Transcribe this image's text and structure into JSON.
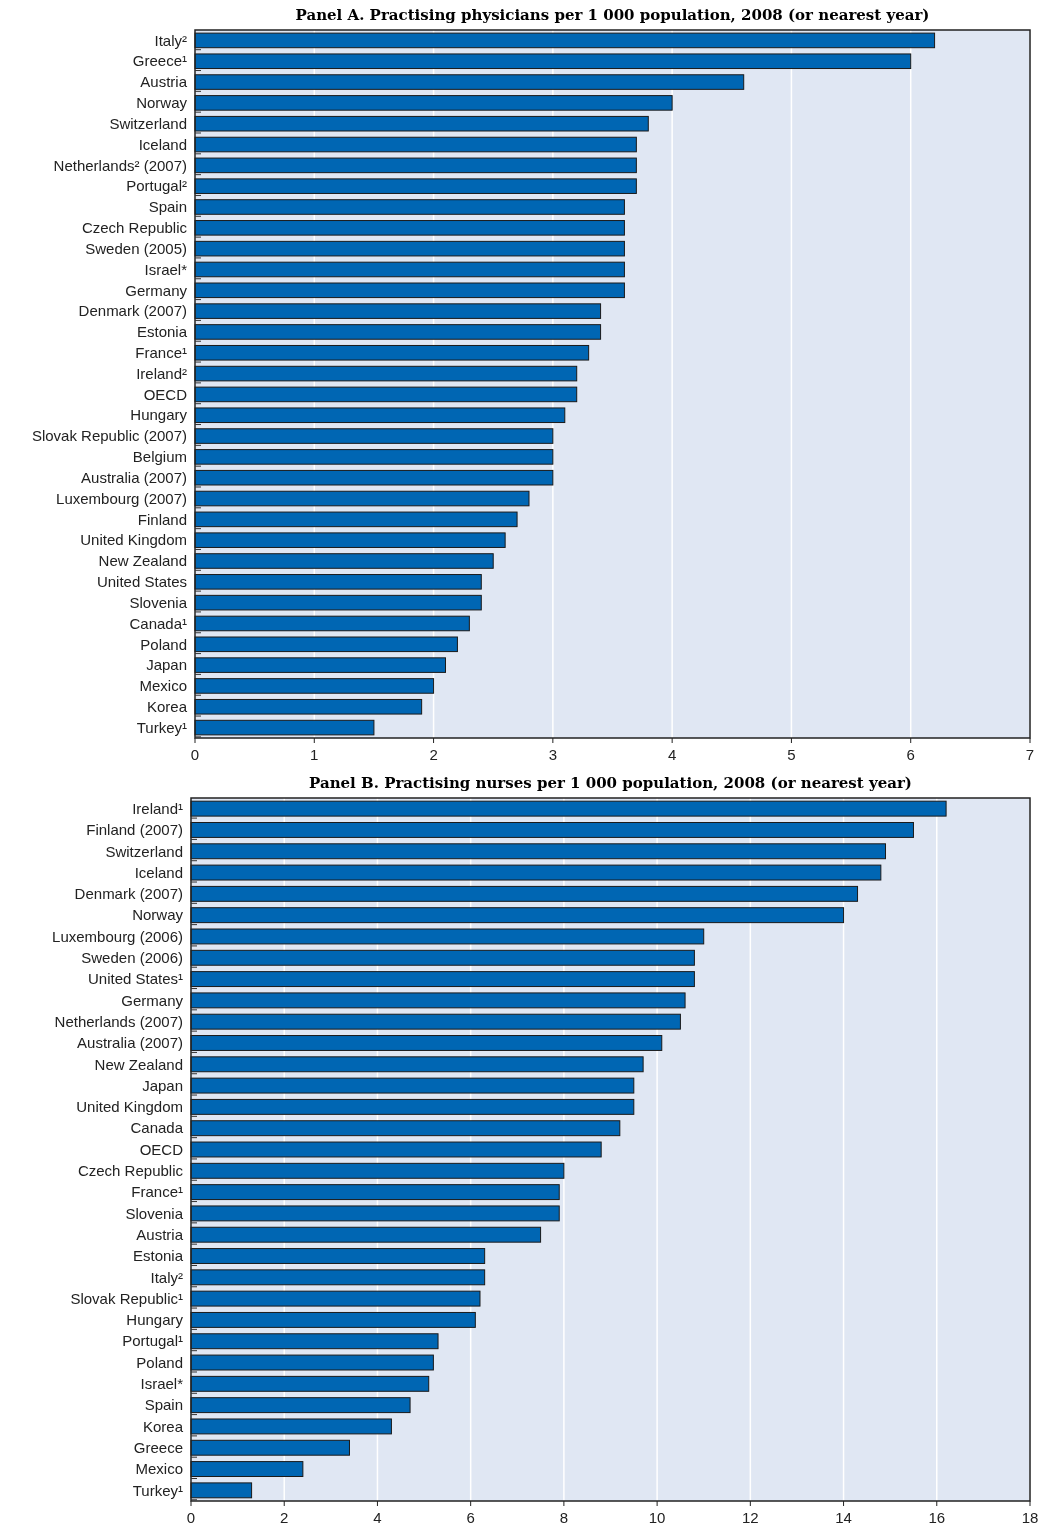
{
  "chart_data": [
    {
      "type": "bar",
      "orientation": "horizontal",
      "title": "Panel A. Practising physicians per 1 000 population, 2008 (or nearest year)",
      "categories": [
        "Italy²",
        "Greece¹",
        "Austria",
        "Norway",
        "Switzerland",
        "Iceland",
        "Netherlands² (2007)",
        "Portugal²",
        "Spain",
        "Czech Republic",
        "Sweden (2005)",
        "Israel*",
        "Germany",
        "Denmark (2007)",
        "Estonia",
        "France¹",
        "Ireland²",
        "OECD",
        "Hungary",
        "Slovak Republic (2007)",
        "Belgium",
        "Australia (2007)",
        "Luxembourg (2007)",
        "Finland",
        "United Kingdom",
        "New Zealand",
        "United States",
        "Slovenia",
        "Canada¹",
        "Poland",
        "Japan",
        "Mexico",
        "Korea",
        "Turkey¹"
      ],
      "values": [
        6.2,
        6.0,
        4.6,
        4.0,
        3.8,
        3.7,
        3.7,
        3.7,
        3.6,
        3.6,
        3.6,
        3.6,
        3.6,
        3.4,
        3.4,
        3.3,
        3.2,
        3.2,
        3.1,
        3.0,
        3.0,
        3.0,
        2.8,
        2.7,
        2.6,
        2.5,
        2.4,
        2.4,
        2.3,
        2.2,
        2.1,
        2.0,
        1.9,
        1.5
      ],
      "color": "#0066b3",
      "xlim": [
        0,
        7
      ],
      "xticks": [
        0,
        1,
        2,
        3,
        4,
        5,
        6,
        7
      ],
      "grid": "x"
    },
    {
      "type": "bar",
      "orientation": "horizontal",
      "title": "Panel B. Practising nurses per 1 000 population, 2008 (or nearest year)",
      "categories": [
        "Ireland¹",
        "Finland (2007)",
        "Switzerland",
        "Iceland",
        "Denmark (2007)",
        "Norway",
        "Luxembourg (2006)",
        "Sweden (2006)",
        "United States¹",
        "Germany",
        "Netherlands (2007)",
        "Australia (2007)",
        "New Zealand",
        "Japan",
        "United Kingdom",
        "Canada",
        "OECD",
        "Czech Republic",
        "France¹",
        "Slovenia",
        "Austria",
        "Estonia",
        "Italy²",
        "Slovak Republic¹",
        "Hungary",
        "Portugal¹",
        "Poland",
        "Israel*",
        "Spain",
        "Korea",
        "Greece",
        "Mexico",
        "Turkey¹"
      ],
      "values": [
        16.2,
        15.5,
        14.9,
        14.8,
        14.3,
        14.0,
        11.0,
        10.8,
        10.8,
        10.6,
        10.5,
        10.1,
        9.7,
        9.5,
        9.5,
        9.2,
        8.8,
        8.0,
        7.9,
        7.9,
        7.5,
        6.3,
        6.3,
        6.2,
        6.1,
        5.3,
        5.2,
        5.1,
        4.7,
        4.3,
        3.4,
        2.4,
        1.3
      ],
      "color": "#0066b3",
      "xlim": [
        0,
        18
      ],
      "xticks": [
        0,
        2,
        4,
        6,
        8,
        10,
        12,
        14,
        16,
        18
      ],
      "grid": "x"
    }
  ]
}
